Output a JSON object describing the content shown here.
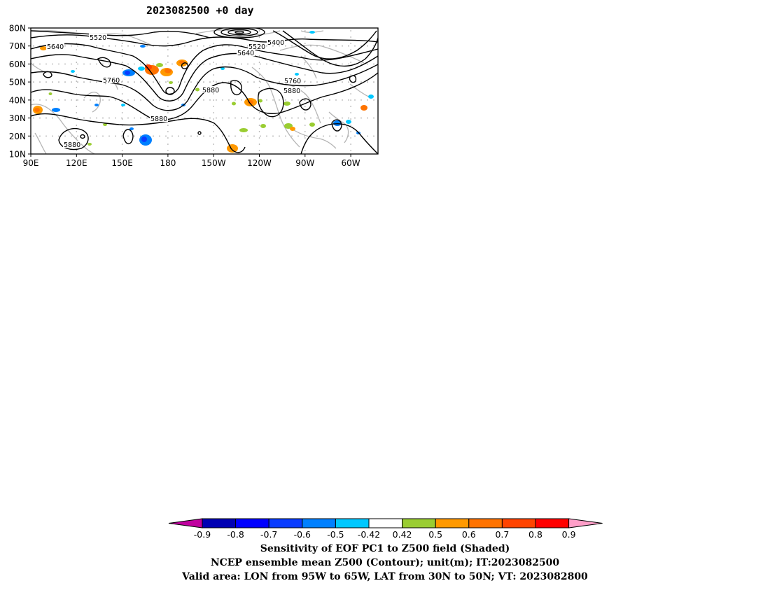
{
  "title": "2023082500 +0 day",
  "map": {
    "lat_labels": [
      "80N",
      "70N",
      "60N",
      "50N",
      "40N",
      "30N",
      "20N",
      "10N"
    ],
    "lon_labels": [
      "90E",
      "120E",
      "150E",
      "180",
      "150W",
      "120W",
      "90W",
      "60W"
    ],
    "contour_labels": [
      {
        "text": "5520"
      },
      {
        "text": "5640"
      },
      {
        "text": "5400"
      },
      {
        "text": "5520"
      },
      {
        "text": "5640"
      },
      {
        "text": "5760"
      },
      {
        "text": "5880"
      },
      {
        "text": "5760"
      },
      {
        "text": "5880"
      },
      {
        "text": "5880"
      },
      {
        "text": "5880"
      }
    ],
    "colors": {
      "contour": "#000000",
      "coastline": "#b4b4b4",
      "grid_dots": "#9a9a9a"
    }
  },
  "colorbar": {
    "labels": [
      "-0.9",
      "-0.8",
      "-0.7",
      "-0.6",
      "-0.5",
      "-0.42",
      "0.42",
      "0.5",
      "0.6",
      "0.7",
      "0.8",
      "0.9"
    ],
    "colors": [
      "#c0009f",
      "#0000b3",
      "#0000ff",
      "#0a3cff",
      "#0080ff",
      "#00c8ff",
      "#ffffff",
      "#9acd32",
      "#ff9900",
      "#ff7300",
      "#ff4400",
      "#ff0000",
      "#ff9ec8"
    ]
  },
  "captions": {
    "line1": "Sensitivity of EOF PC1 to Z500 field (Shaded)",
    "line2": "NCEP ensemble mean Z500 (Contour); unit(m); IT:2023082500",
    "line3": "Valid area: LON from 95W to 65W, LAT from 30N to 50N; VT: 2023082800"
  }
}
